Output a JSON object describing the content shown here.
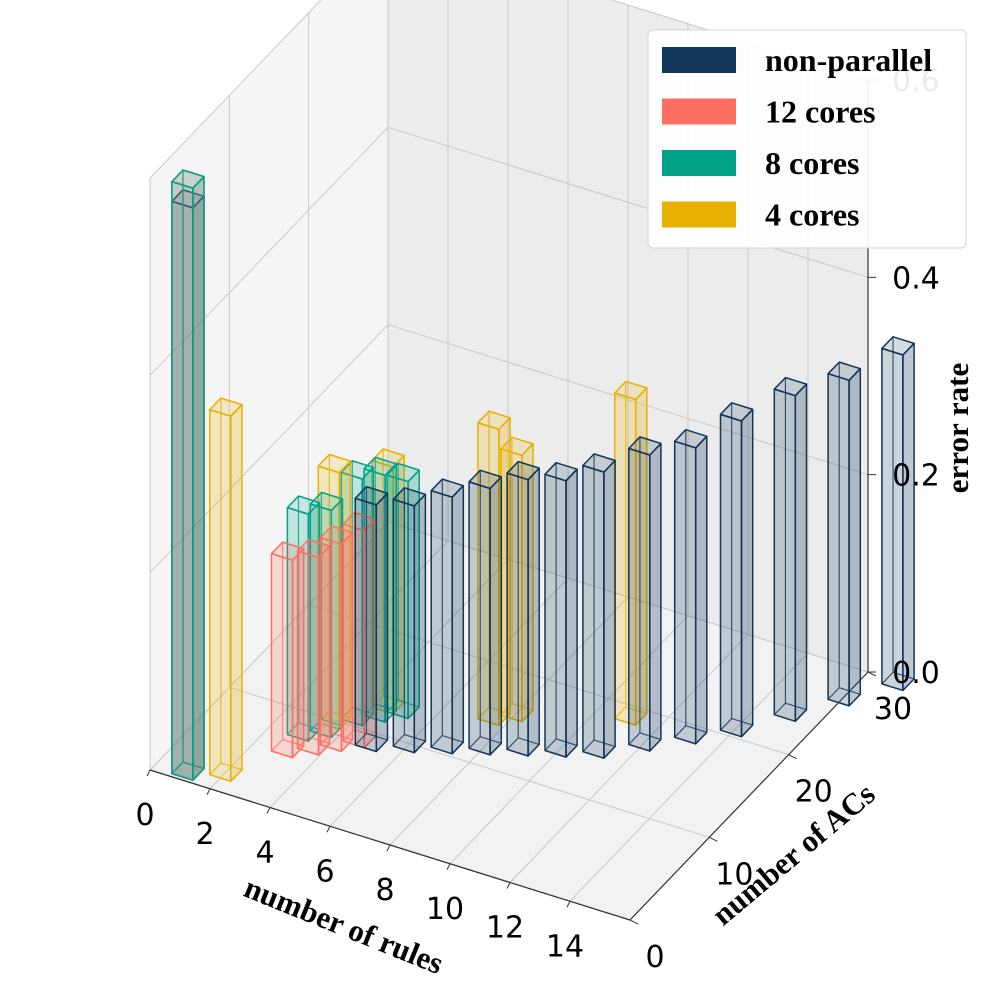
{
  "chart_data": {
    "type": "bar3d",
    "xlabel": "number of rules",
    "ylabel": "number of ACs",
    "zlabel": "error rate",
    "x_ticks": [
      "0",
      "2",
      "4",
      "6",
      "8",
      "10",
      "12",
      "14"
    ],
    "y_ticks": [
      "0",
      "10",
      "20",
      "30"
    ],
    "z_ticks": [
      "0.0",
      "0.2",
      "0.4",
      "0.6"
    ],
    "xlim": [
      0,
      15
    ],
    "ylim": [
      0,
      30
    ],
    "zlim": [
      0,
      0.6
    ],
    "legend_position": "top-right",
    "grid": true,
    "series": [
      {
        "name": "non-parallel",
        "color": "#12355b",
        "points": [
          {
            "x": 1,
            "y": 1,
            "z": 0.58
          },
          {
            "x": 5,
            "y": 9,
            "z": 0.25
          },
          {
            "x": 6,
            "y": 10,
            "z": 0.25
          },
          {
            "x": 7,
            "y": 11,
            "z": 0.26
          },
          {
            "x": 8,
            "y": 12,
            "z": 0.27
          },
          {
            "x": 9,
            "y": 13,
            "z": 0.28
          },
          {
            "x": 10,
            "y": 14,
            "z": 0.28
          },
          {
            "x": 11,
            "y": 15,
            "z": 0.29
          },
          {
            "x": 12,
            "y": 17,
            "z": 0.3
          },
          {
            "x": 13,
            "y": 19,
            "z": 0.3
          },
          {
            "x": 14,
            "y": 21,
            "z": 0.32
          },
          {
            "x": 15,
            "y": 24,
            "z": 0.33
          },
          {
            "x": 16,
            "y": 27,
            "z": 0.33
          },
          {
            "x": 17,
            "y": 30,
            "z": 0.34
          }
        ]
      },
      {
        "name": "12 cores",
        "color": "#ff6f61",
        "points": [
          {
            "x": 1,
            "y": 1,
            "z": 0.6
          },
          {
            "x": 3,
            "y": 6,
            "z": 0.2
          },
          {
            "x": 3.6,
            "y": 7,
            "z": 0.2
          },
          {
            "x": 4.1,
            "y": 8,
            "z": 0.21
          },
          {
            "x": 4.6,
            "y": 9,
            "z": 0.22
          }
        ]
      },
      {
        "name": "8 cores",
        "color": "#00a388",
        "points": [
          {
            "x": 1,
            "y": 1,
            "z": 0.6
          },
          {
            "x": 3,
            "y": 8,
            "z": 0.23
          },
          {
            "x": 3.5,
            "y": 9,
            "z": 0.23
          },
          {
            "x": 4.0,
            "y": 11,
            "z": 0.25
          },
          {
            "x": 4.5,
            "y": 12,
            "z": 0.25
          },
          {
            "x": 5.0,
            "y": 13,
            "z": 0.24
          }
        ]
      },
      {
        "name": "4 cores",
        "color": "#e8b000",
        "points": [
          {
            "x": 2,
            "y": 2,
            "z": 0.37
          },
          {
            "x": 3.5,
            "y": 10,
            "z": 0.26
          },
          {
            "x": 4.5,
            "y": 13,
            "z": 0.25
          },
          {
            "x": 7.5,
            "y": 15,
            "z": 0.3
          },
          {
            "x": 8.0,
            "y": 16,
            "z": 0.27
          },
          {
            "x": 11.0,
            "y": 19,
            "z": 0.33
          }
        ]
      }
    ]
  }
}
